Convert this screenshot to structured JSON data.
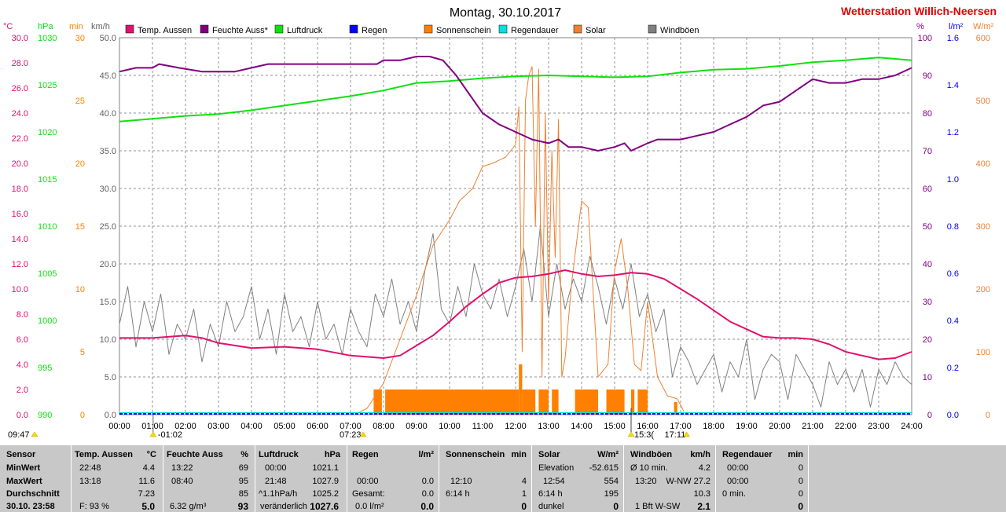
{
  "title": "Montag, 30.10.2017",
  "station": "Wetterstation Willich-Neersen",
  "colors": {
    "temp": "#e0106e",
    "humidity": "#800080",
    "pressure": "#10e010",
    "rain": "#0000ff",
    "sunshine": "#ff8000",
    "raindur": "#00e0e0",
    "solar": "#f08030",
    "wind": "#808080"
  },
  "axes": {
    "left_units": [
      "°C",
      "hPa",
      "min",
      "km/h"
    ],
    "right_units": [
      "%",
      "l/m²",
      "W/m²"
    ],
    "temp_ticks": [
      "30.0",
      "28.0",
      "26.0",
      "24.0",
      "22.0",
      "20.0",
      "18.0",
      "16.0",
      "14.0",
      "12.0",
      "10.0",
      "8.0",
      "6.0",
      "4.0",
      "2.0",
      "0.0"
    ],
    "hpa_ticks": [
      "1030",
      "1025",
      "1020",
      "1015",
      "1010",
      "1005",
      "1000",
      "995",
      "990"
    ],
    "min_ticks": [
      "30",
      "25",
      "20",
      "15",
      "10",
      "5",
      "0"
    ],
    "kmh_ticks": [
      "50.0",
      "45.0",
      "40.0",
      "35.0",
      "30.0",
      "25.0",
      "20.0",
      "15.0",
      "10.0",
      "5.0",
      "0.0"
    ],
    "pct_ticks": [
      "100",
      "90",
      "80",
      "70",
      "60",
      "50",
      "40",
      "30",
      "20",
      "10",
      "0"
    ],
    "lm2_ticks": [
      "1.6",
      "1.4",
      "1.2",
      "1.0",
      "0.8",
      "0.6",
      "0.4",
      "0.2",
      "0.0"
    ],
    "wm2_ticks": [
      "600",
      "500",
      "400",
      "300",
      "200",
      "100",
      "0"
    ],
    "time_ticks": [
      "00:00",
      "01:00",
      "02:00",
      "03:00",
      "04:00",
      "05:00",
      "06:00",
      "07:00",
      "08:00",
      "09:00",
      "10:00",
      "11:00",
      "12:00",
      "13:00",
      "14:00",
      "15:00",
      "16:00",
      "17:00",
      "18:00",
      "19:00",
      "20:00",
      "21:00",
      "22:00",
      "23:00",
      "24:00"
    ]
  },
  "markers": {
    "sunrise": "07:23",
    "sunset": "17:11",
    "left_time": "09:47",
    "moon": "-01:02",
    "mark_1530": "15:3("
  },
  "chart_data": {
    "type": "line",
    "x_unit": "hours",
    "x_range": [
      0,
      24
    ],
    "series": [
      {
        "name": "Temp. Aussen",
        "unit": "°C",
        "ylim": [
          0,
          30
        ],
        "x": [
          0,
          1,
          2,
          2.5,
          3,
          3.5,
          4,
          5,
          6,
          7,
          8,
          8.5,
          9,
          9.5,
          10,
          10.5,
          11,
          11.5,
          12,
          12.5,
          13,
          13.5,
          14,
          14.5,
          15,
          15.5,
          16,
          16.5,
          17,
          17.5,
          18,
          18.5,
          19,
          19.5,
          20,
          20.5,
          21,
          21.5,
          22,
          22.5,
          23,
          23.5,
          24
        ],
        "y": [
          6.1,
          6.1,
          6.3,
          6.1,
          5.7,
          5.5,
          5.3,
          5.4,
          5.2,
          4.7,
          4.5,
          4.7,
          5.5,
          6.3,
          7.4,
          8.6,
          9.6,
          10.5,
          10.9,
          11.0,
          11.2,
          11.5,
          11.2,
          11.0,
          11.1,
          11.3,
          11.2,
          10.8,
          10.0,
          9.2,
          8.3,
          7.4,
          6.8,
          6.2,
          6.1,
          6.1,
          6.0,
          5.6,
          5.0,
          4.7,
          4.4,
          4.5,
          5.0
        ]
      },
      {
        "name": "Feuchte Auss*",
        "unit": "%",
        "ylim": [
          0,
          100
        ],
        "x": [
          0,
          0.5,
          1,
          1.2,
          1.8,
          2.5,
          3,
          3.5,
          4,
          4.5,
          5,
          6,
          7,
          7.8,
          8,
          8.5,
          9,
          9.4,
          9.8,
          10.2,
          10.6,
          11,
          11.5,
          12,
          12.5,
          13,
          13.3,
          13.6,
          14,
          14.5,
          15,
          15.3,
          15.5,
          16,
          16.3,
          17,
          17.5,
          18,
          18.5,
          19,
          19.5,
          20,
          20.5,
          21,
          21.5,
          22,
          22.5,
          23,
          23.5,
          24
        ],
        "y": [
          91,
          92,
          92,
          93,
          92,
          91,
          91,
          91,
          92,
          93,
          93,
          93,
          93,
          93,
          94,
          94,
          95,
          95,
          94,
          90,
          85,
          80,
          77,
          75,
          73,
          72,
          73,
          71,
          71,
          70,
          71,
          72,
          70,
          72,
          73,
          73,
          74,
          75,
          77,
          79,
          82,
          83,
          86,
          89,
          88,
          88,
          89,
          89,
          90,
          92
        ]
      },
      {
        "name": "Luftdruck",
        "unit": "hPa",
        "ylim": [
          990,
          1030
        ],
        "x": [
          0,
          1,
          2,
          3,
          4,
          5,
          6,
          7,
          8,
          9,
          10,
          11,
          12,
          13,
          14,
          15,
          16,
          17,
          18,
          19,
          20,
          21,
          22,
          23,
          24
        ],
        "y": [
          1021.1,
          1021.4,
          1021.7,
          1021.9,
          1022.3,
          1022.8,
          1023.3,
          1023.8,
          1024.4,
          1025.2,
          1025.4,
          1025.7,
          1025.9,
          1026.0,
          1025.9,
          1025.8,
          1025.9,
          1026.3,
          1026.6,
          1026.7,
          1027.0,
          1027.4,
          1027.6,
          1027.9,
          1027.6
        ]
      },
      {
        "name": "Regen",
        "unit": "l/m²",
        "ylim": [
          0,
          1.6
        ],
        "x": [
          0,
          24
        ],
        "y": [
          0.0,
          0.0
        ]
      },
      {
        "name": "Sonnenschein",
        "unit": "min",
        "ylim": [
          0,
          30
        ],
        "bars": [
          [
            7.7,
            7.95,
            2
          ],
          [
            8.05,
            12.1,
            2
          ],
          [
            12.1,
            12.2,
            4
          ],
          [
            12.2,
            12.6,
            2
          ],
          [
            12.7,
            13.0,
            2
          ],
          [
            13.1,
            13.3,
            2
          ],
          [
            13.8,
            14.5,
            2
          ],
          [
            14.75,
            15.3,
            2
          ],
          [
            15.5,
            15.6,
            2
          ],
          [
            15.7,
            16.0,
            2
          ],
          [
            16.8,
            16.9,
            1
          ]
        ]
      },
      {
        "name": "Regendauer",
        "unit": "min",
        "ylim": [
          0,
          30
        ],
        "x": [
          0,
          24
        ],
        "y": [
          0,
          0
        ]
      },
      {
        "name": "Solar",
        "unit": "W/m²",
        "ylim": [
          0,
          600
        ],
        "x": [
          7.2,
          7.5,
          8,
          8.5,
          9,
          9.5,
          10,
          10.3,
          10.7,
          11,
          11.3,
          11.7,
          12,
          12.1,
          12.2,
          12.3,
          12.4,
          12.5,
          12.6,
          12.7,
          12.8,
          12.9,
          13.0,
          13.1,
          13.2,
          13.3,
          13.4,
          13.5,
          13.7,
          14.0,
          14.2,
          14.5,
          14.8,
          15.0,
          15.2,
          15.4,
          15.6,
          15.8,
          16.0,
          16.3,
          16.6,
          16.9,
          17.1
        ],
        "y": [
          2,
          10,
          50,
          120,
          190,
          270,
          310,
          340,
          360,
          395,
          400,
          410,
          430,
          490,
          100,
          500,
          540,
          554,
          300,
          550,
          60,
          480,
          180,
          420,
          250,
          470,
          60,
          90,
          210,
          340,
          330,
          60,
          80,
          230,
          280,
          200,
          80,
          70,
          180,
          60,
          30,
          25,
          5
        ]
      },
      {
        "name": "Windböen",
        "unit": "km/h",
        "ylim": [
          0,
          50
        ],
        "x": [
          0,
          0.25,
          0.5,
          0.75,
          1,
          1.25,
          1.5,
          1.75,
          2,
          2.25,
          2.5,
          2.75,
          3,
          3.25,
          3.5,
          3.75,
          4,
          4.25,
          4.5,
          4.75,
          5,
          5.25,
          5.5,
          5.75,
          6,
          6.25,
          6.5,
          6.75,
          7,
          7.25,
          7.5,
          7.75,
          8,
          8.25,
          8.5,
          8.75,
          9,
          9.25,
          9.5,
          9.75,
          10,
          10.25,
          10.5,
          10.75,
          11,
          11.25,
          11.5,
          11.75,
          12,
          12.25,
          12.5,
          12.75,
          13,
          13.25,
          13.5,
          13.75,
          14,
          14.25,
          14.5,
          14.75,
          15,
          15.25,
          15.5,
          15.75,
          16,
          16.25,
          16.5,
          16.75,
          17,
          17.25,
          17.5,
          17.75,
          18,
          18.25,
          18.5,
          18.75,
          19,
          19.25,
          19.5,
          19.75,
          20,
          20.25,
          20.5,
          20.75,
          21,
          21.25,
          21.5,
          21.75,
          22,
          22.25,
          22.5,
          22.75,
          23,
          23.25,
          23.5,
          23.75,
          24
        ],
        "y": [
          12,
          17,
          9,
          15,
          11,
          16,
          8,
          12,
          10,
          14,
          7,
          12,
          9,
          15,
          11,
          13,
          17,
          10,
          14,
          8,
          16,
          11,
          13,
          9,
          15,
          10,
          12,
          8,
          14,
          11,
          9,
          16,
          13,
          18,
          12,
          15,
          11,
          19,
          24,
          14,
          12,
          17,
          13,
          20,
          16,
          14,
          18,
          13,
          17,
          22,
          15,
          25,
          13,
          20,
          14,
          18,
          15,
          21,
          17,
          12,
          18,
          14,
          20,
          13,
          16,
          11,
          14,
          5,
          9,
          7,
          4,
          6,
          8,
          3,
          7,
          5,
          10,
          2,
          6,
          8,
          7,
          2,
          8,
          6,
          4,
          1,
          7,
          4,
          6,
          3,
          6,
          1,
          6,
          4,
          7,
          5,
          4
        ]
      }
    ]
  },
  "stats": {
    "sensor": {
      "header": "Sensor",
      "rows": [
        "MinWert",
        "MaxWert",
        "Durchschnitt"
      ],
      "last": "30.10. 23:58"
    },
    "temp": {
      "header": "Temp. Aussen",
      "unit": "°C",
      "min_time": "22:48",
      "min_val": "4.4",
      "max_time": "13:18",
      "max_val": "11.6",
      "avg": "7.23",
      "foot_label": "F: 93 %",
      "foot_val": "5.0"
    },
    "hum": {
      "header": "Feuchte Auss",
      "unit": "%",
      "min_time": "13:22",
      "min_val": "69",
      "max_time": "08:40",
      "max_val": "95",
      "avg": "85",
      "foot_label": "6.32 g/m³",
      "foot_val": "93"
    },
    "press": {
      "header": "Luftdruck",
      "unit": "hPa",
      "min_time": "00:00",
      "min_val": "1021.1",
      "max_time": "21:48",
      "max_val": "1027.9",
      "avg_label": "^1.1hPa/h",
      "avg": "1025.2",
      "foot_label": "veränderlich",
      "foot_val": "1027.6"
    },
    "rain": {
      "header": "Regen",
      "unit": "l/m²",
      "max_time": "00:00",
      "max_val": "0.0",
      "avg_label": "Gesamt:",
      "avg": "0.0",
      "foot_label": "0.0 l/m²",
      "foot_val": "0.0"
    },
    "sun": {
      "header": "Sonnenschein",
      "unit": "min",
      "max_time": "12:10",
      "max_val": "4",
      "avg_label": "6:14 h",
      "avg": "1",
      "foot_val": "0"
    },
    "solar": {
      "header": "Solar",
      "unit": "W/m²",
      "min_label": "Elevation",
      "min_val": "-52.615",
      "max_time": "12:54",
      "max_val": "554",
      "avg_label": "6:14 h",
      "avg": "195",
      "foot_label": "dunkel",
      "foot_val": "0"
    },
    "wind": {
      "header": "Windböen",
      "unit": "km/h",
      "min_label": "Ø 10 min.",
      "min_val": "4.2",
      "max_time": "13:20",
      "max_val": "W-NW 27.2",
      "avg": "10.3",
      "foot_label": "1 Bft W-SW",
      "foot_val": "2.1"
    },
    "raindur": {
      "header": "Regendauer",
      "unit": "min",
      "min_time": "00:00",
      "min_val": "0",
      "max_time": "00:00",
      "max_val": "0",
      "avg_label": "0 min.",
      "avg": "0",
      "foot_val": "0"
    }
  }
}
